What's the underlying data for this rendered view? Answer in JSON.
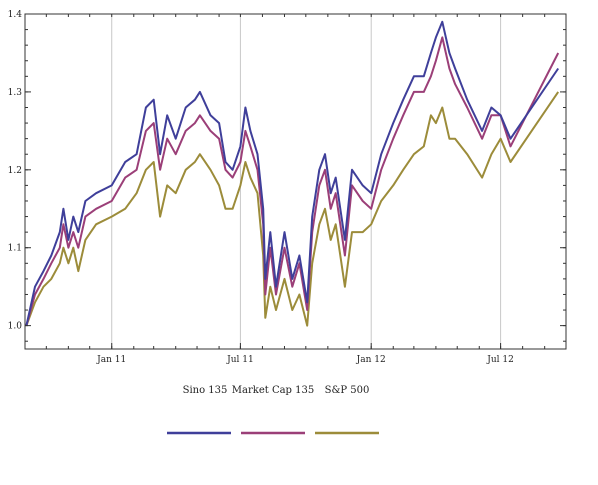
{
  "chart_data": {
    "type": "line",
    "title": "",
    "xlabel": "",
    "ylabel": "",
    "x_ticks": [
      {
        "label": "Jan 11",
        "date": "2011-01-01"
      },
      {
        "label": "Jul 11",
        "date": "2011-07-01"
      },
      {
        "label": "Jan 12",
        "date": "2012-01-01"
      },
      {
        "label": "Jul 12",
        "date": "2012-07-01"
      }
    ],
    "xlim": [
      "2010-09-01",
      "2012-10-01"
    ],
    "ylim": [
      0.97,
      1.4
    ],
    "y_ticks": [
      "1.0",
      "1.1",
      "1.2",
      "1.3",
      "1.4"
    ],
    "grid": "vertical lines at labeled x ticks",
    "legend_placement": "bottom",
    "series": [
      {
        "name": "Sino 135",
        "color": "#3f3f9a",
        "points": [
          [
            "2010-09-03",
            1.0
          ],
          [
            "2010-09-15",
            1.05
          ],
          [
            "2010-09-27",
            1.07
          ],
          [
            "2010-10-08",
            1.09
          ],
          [
            "2010-10-20",
            1.12
          ],
          [
            "2010-10-25",
            1.15
          ],
          [
            "2010-11-01",
            1.11
          ],
          [
            "2010-11-08",
            1.14
          ],
          [
            "2010-11-15",
            1.12
          ],
          [
            "2010-11-25",
            1.16
          ],
          [
            "2010-12-10",
            1.17
          ],
          [
            "2011-01-01",
            1.18
          ],
          [
            "2011-01-20",
            1.21
          ],
          [
            "2011-02-05",
            1.22
          ],
          [
            "2011-02-18",
            1.28
          ],
          [
            "2011-03-01",
            1.29
          ],
          [
            "2011-03-10",
            1.22
          ],
          [
            "2011-03-20",
            1.27
          ],
          [
            "2011-04-01",
            1.24
          ],
          [
            "2011-04-15",
            1.28
          ],
          [
            "2011-04-28",
            1.29
          ],
          [
            "2011-05-05",
            1.3
          ],
          [
            "2011-05-20",
            1.27
          ],
          [
            "2011-06-01",
            1.26
          ],
          [
            "2011-06-10",
            1.21
          ],
          [
            "2011-06-20",
            1.2
          ],
          [
            "2011-07-01",
            1.23
          ],
          [
            "2011-07-08",
            1.28
          ],
          [
            "2011-07-15",
            1.25
          ],
          [
            "2011-07-25",
            1.22
          ],
          [
            "2011-08-02",
            1.15
          ],
          [
            "2011-08-05",
            1.06
          ],
          [
            "2011-08-12",
            1.12
          ],
          [
            "2011-08-20",
            1.05
          ],
          [
            "2011-09-01",
            1.12
          ],
          [
            "2011-09-12",
            1.06
          ],
          [
            "2011-09-22",
            1.09
          ],
          [
            "2011-10-03",
            1.03
          ],
          [
            "2011-10-10",
            1.14
          ],
          [
            "2011-10-20",
            1.2
          ],
          [
            "2011-10-28",
            1.22
          ],
          [
            "2011-11-05",
            1.17
          ],
          [
            "2011-11-12",
            1.19
          ],
          [
            "2011-11-25",
            1.11
          ],
          [
            "2011-12-05",
            1.2
          ],
          [
            "2011-12-20",
            1.18
          ],
          [
            "2012-01-01",
            1.17
          ],
          [
            "2012-01-15",
            1.22
          ],
          [
            "2012-02-01",
            1.26
          ],
          [
            "2012-02-15",
            1.29
          ],
          [
            "2012-03-01",
            1.32
          ],
          [
            "2012-03-15",
            1.32
          ],
          [
            "2012-03-25",
            1.35
          ],
          [
            "2012-04-01",
            1.37
          ],
          [
            "2012-04-10",
            1.39
          ],
          [
            "2012-04-20",
            1.35
          ],
          [
            "2012-04-28",
            1.33
          ],
          [
            "2012-05-15",
            1.29
          ],
          [
            "2012-06-05",
            1.25
          ],
          [
            "2012-06-18",
            1.28
          ],
          [
            "2012-07-01",
            1.27
          ],
          [
            "2012-07-15",
            1.24
          ],
          [
            "2012-09-20",
            1.33
          ]
        ]
      },
      {
        "name": "Market Cap 135",
        "color": "#9b3f78",
        "points": [
          [
            "2010-09-03",
            1.0
          ],
          [
            "2010-09-15",
            1.04
          ],
          [
            "2010-09-27",
            1.06
          ],
          [
            "2010-10-08",
            1.08
          ],
          [
            "2010-10-20",
            1.1
          ],
          [
            "2010-10-25",
            1.13
          ],
          [
            "2010-11-01",
            1.1
          ],
          [
            "2010-11-08",
            1.12
          ],
          [
            "2010-11-15",
            1.1
          ],
          [
            "2010-11-25",
            1.14
          ],
          [
            "2010-12-10",
            1.15
          ],
          [
            "2011-01-01",
            1.16
          ],
          [
            "2011-01-20",
            1.19
          ],
          [
            "2011-02-05",
            1.2
          ],
          [
            "2011-02-18",
            1.25
          ],
          [
            "2011-03-01",
            1.26
          ],
          [
            "2011-03-10",
            1.2
          ],
          [
            "2011-03-20",
            1.24
          ],
          [
            "2011-04-01",
            1.22
          ],
          [
            "2011-04-15",
            1.25
          ],
          [
            "2011-04-28",
            1.26
          ],
          [
            "2011-05-05",
            1.27
          ],
          [
            "2011-05-20",
            1.25
          ],
          [
            "2011-06-01",
            1.24
          ],
          [
            "2011-06-10",
            1.2
          ],
          [
            "2011-06-20",
            1.19
          ],
          [
            "2011-07-01",
            1.21
          ],
          [
            "2011-07-08",
            1.25
          ],
          [
            "2011-07-15",
            1.23
          ],
          [
            "2011-07-25",
            1.2
          ],
          [
            "2011-08-02",
            1.13
          ],
          [
            "2011-08-05",
            1.04
          ],
          [
            "2011-08-12",
            1.1
          ],
          [
            "2011-08-20",
            1.04
          ],
          [
            "2011-09-01",
            1.1
          ],
          [
            "2011-09-12",
            1.05
          ],
          [
            "2011-09-22",
            1.08
          ],
          [
            "2011-10-03",
            1.02
          ],
          [
            "2011-10-10",
            1.12
          ],
          [
            "2011-10-20",
            1.18
          ],
          [
            "2011-10-28",
            1.2
          ],
          [
            "2011-11-05",
            1.15
          ],
          [
            "2011-11-12",
            1.17
          ],
          [
            "2011-11-25",
            1.09
          ],
          [
            "2011-12-05",
            1.18
          ],
          [
            "2011-12-20",
            1.16
          ],
          [
            "2012-01-01",
            1.15
          ],
          [
            "2012-01-15",
            1.2
          ],
          [
            "2012-02-01",
            1.24
          ],
          [
            "2012-02-15",
            1.27
          ],
          [
            "2012-03-01",
            1.3
          ],
          [
            "2012-03-15",
            1.3
          ],
          [
            "2012-03-25",
            1.32
          ],
          [
            "2012-04-01",
            1.34
          ],
          [
            "2012-04-10",
            1.37
          ],
          [
            "2012-04-20",
            1.33
          ],
          [
            "2012-04-28",
            1.31
          ],
          [
            "2012-05-15",
            1.28
          ],
          [
            "2012-06-05",
            1.24
          ],
          [
            "2012-06-18",
            1.27
          ],
          [
            "2012-07-01",
            1.27
          ],
          [
            "2012-07-15",
            1.23
          ],
          [
            "2012-09-20",
            1.35
          ]
        ]
      },
      {
        "name": "S&P 500",
        "color": "#9c8c3a",
        "points": [
          [
            "2010-09-03",
            1.0
          ],
          [
            "2010-09-15",
            1.03
          ],
          [
            "2010-09-27",
            1.05
          ],
          [
            "2010-10-08",
            1.06
          ],
          [
            "2010-10-20",
            1.08
          ],
          [
            "2010-10-25",
            1.1
          ],
          [
            "2010-11-01",
            1.08
          ],
          [
            "2010-11-08",
            1.1
          ],
          [
            "2010-11-15",
            1.07
          ],
          [
            "2010-11-25",
            1.11
          ],
          [
            "2010-12-10",
            1.13
          ],
          [
            "2011-01-01",
            1.14
          ],
          [
            "2011-01-20",
            1.15
          ],
          [
            "2011-02-05",
            1.17
          ],
          [
            "2011-02-18",
            1.2
          ],
          [
            "2011-03-01",
            1.21
          ],
          [
            "2011-03-10",
            1.14
          ],
          [
            "2011-03-20",
            1.18
          ],
          [
            "2011-04-01",
            1.17
          ],
          [
            "2011-04-15",
            1.2
          ],
          [
            "2011-04-28",
            1.21
          ],
          [
            "2011-05-05",
            1.22
          ],
          [
            "2011-05-20",
            1.2
          ],
          [
            "2011-06-01",
            1.18
          ],
          [
            "2011-06-10",
            1.15
          ],
          [
            "2011-06-20",
            1.15
          ],
          [
            "2011-07-01",
            1.18
          ],
          [
            "2011-07-08",
            1.21
          ],
          [
            "2011-07-15",
            1.19
          ],
          [
            "2011-07-25",
            1.17
          ],
          [
            "2011-08-02",
            1.09
          ],
          [
            "2011-08-05",
            1.01
          ],
          [
            "2011-08-12",
            1.05
          ],
          [
            "2011-08-20",
            1.02
          ],
          [
            "2011-09-01",
            1.06
          ],
          [
            "2011-09-12",
            1.02
          ],
          [
            "2011-09-22",
            1.04
          ],
          [
            "2011-10-03",
            1.0
          ],
          [
            "2011-10-10",
            1.08
          ],
          [
            "2011-10-20",
            1.13
          ],
          [
            "2011-10-28",
            1.15
          ],
          [
            "2011-11-05",
            1.11
          ],
          [
            "2011-11-12",
            1.13
          ],
          [
            "2011-11-25",
            1.05
          ],
          [
            "2011-12-05",
            1.12
          ],
          [
            "2011-12-20",
            1.12
          ],
          [
            "2012-01-01",
            1.13
          ],
          [
            "2012-01-15",
            1.16
          ],
          [
            "2012-02-01",
            1.18
          ],
          [
            "2012-02-15",
            1.2
          ],
          [
            "2012-03-01",
            1.22
          ],
          [
            "2012-03-15",
            1.23
          ],
          [
            "2012-03-25",
            1.27
          ],
          [
            "2012-04-01",
            1.26
          ],
          [
            "2012-04-10",
            1.28
          ],
          [
            "2012-04-20",
            1.24
          ],
          [
            "2012-04-28",
            1.24
          ],
          [
            "2012-05-15",
            1.22
          ],
          [
            "2012-06-05",
            1.19
          ],
          [
            "2012-06-18",
            1.22
          ],
          [
            "2012-07-01",
            1.24
          ],
          [
            "2012-07-15",
            1.21
          ],
          [
            "2012-09-20",
            1.3
          ]
        ]
      }
    ]
  }
}
